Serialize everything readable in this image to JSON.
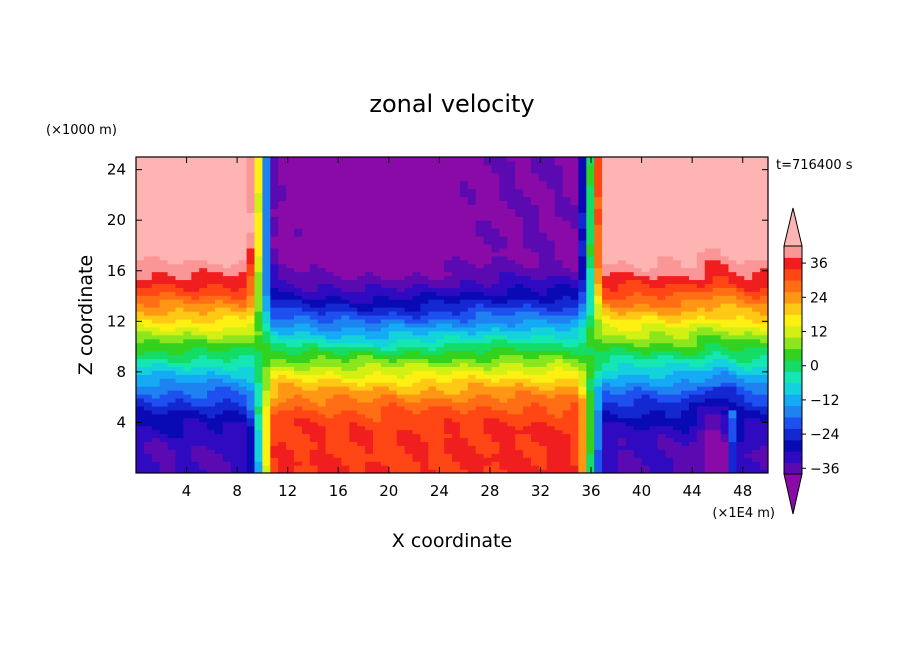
{
  "chart_data": {
    "type": "heatmap",
    "title": "zonal velocity",
    "xlabel": "X coordinate",
    "ylabel": "Z coordinate",
    "x_unit": "(×1E4 m)",
    "y_unit": "(×1000 m)",
    "time_label": "t=716400 s",
    "xlim": [
      0,
      50
    ],
    "ylim": [
      0,
      25
    ],
    "x_ticks": [
      4,
      8,
      12,
      16,
      20,
      24,
      28,
      32,
      36,
      40,
      44,
      48
    ],
    "x_tick_labels": [
      "4",
      "8",
      "12",
      "16",
      "20",
      "24",
      "28",
      "32",
      "36",
      "40",
      "44",
      "48"
    ],
    "y_ticks": [
      4,
      8,
      12,
      16,
      20,
      24
    ],
    "y_tick_labels": [
      "4",
      "8",
      "12",
      "16",
      "20",
      "24"
    ],
    "colorbar": {
      "min": -42,
      "max": 42,
      "step": 4,
      "labels": [
        36,
        24,
        12,
        0,
        -12,
        -24,
        -36
      ],
      "label_texts": [
        "36",
        "24",
        "12",
        "0",
        "−12",
        "−24",
        "−36"
      ],
      "colors": [
        "#8a0aa8",
        "#5a0ab0",
        "#300ac0",
        "#0a0ab4",
        "#1428d2",
        "#1e50f0",
        "#1e82f0",
        "#14aaf5",
        "#14d2dc",
        "#14e6b4",
        "#14dc64",
        "#32d21e",
        "#8ce61e",
        "#d2f014",
        "#fff014",
        "#ffc814",
        "#ff9614",
        "#ff6e14",
        "#ff4614",
        "#f01e1e",
        "#fa9696",
        "#ffb4b4"
      ]
    },
    "field_description_points": {
      "x": [
        0,
        4,
        8,
        10,
        12,
        16,
        20,
        24,
        28,
        32,
        35,
        36,
        38,
        40,
        44,
        48,
        50
      ],
      "surface_velocity_near_z0": [
        -36,
        -34,
        -32,
        0,
        24,
        28,
        30,
        32,
        32,
        30,
        28,
        0,
        -36,
        -36,
        -34,
        -20,
        -30
      ],
      "upper_velocity_near_z24": [
        40,
        40,
        36,
        0,
        -40,
        -40,
        -38,
        -36,
        -34,
        -33,
        -30,
        0,
        40,
        40,
        40,
        36,
        38
      ]
    }
  }
}
